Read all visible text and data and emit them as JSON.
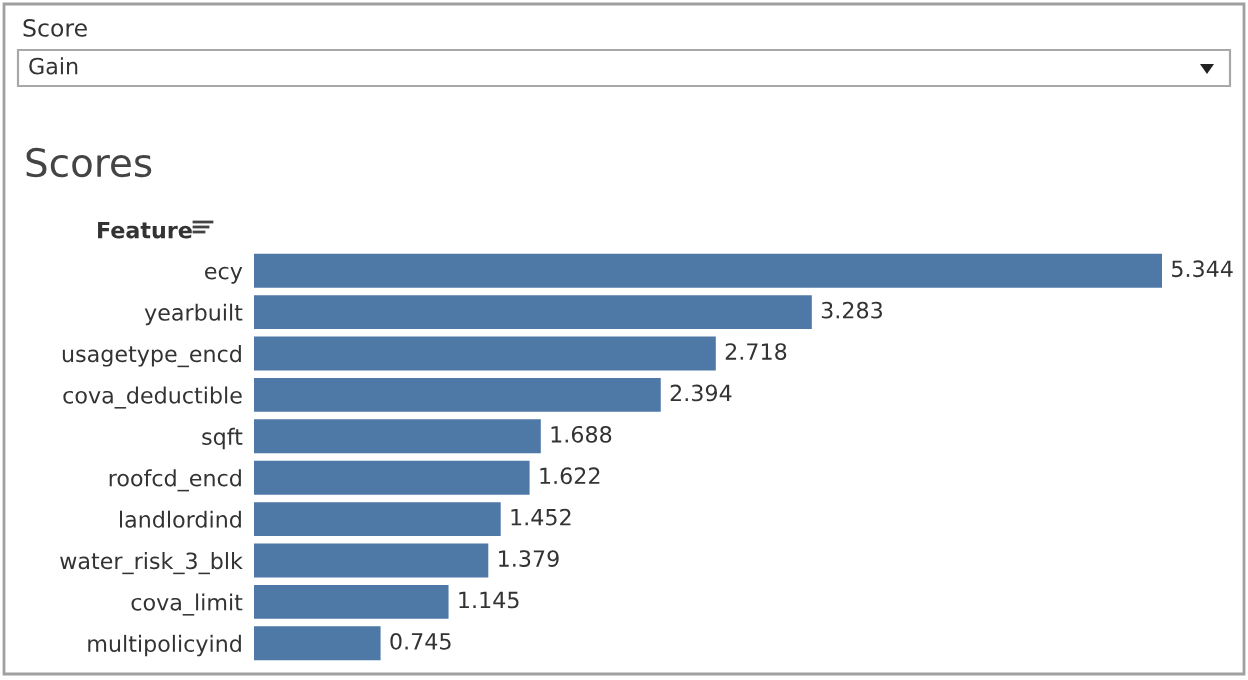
{
  "chart_data": {
    "type": "bar",
    "orientation": "horizontal",
    "title": "Scores",
    "ylabel": "Feature",
    "annotations": [
      "Score",
      "Gain"
    ],
    "categories": [
      "ecy",
      "yearbuilt",
      "usagetype_encd",
      "cova_deductible",
      "sqft",
      "roofcd_encd",
      "landlordind",
      "water_risk_3_blk",
      "cova_limit",
      "multipolicyind"
    ],
    "values": [
      5.344,
      3.283,
      2.718,
      2.394,
      1.688,
      1.622,
      1.452,
      1.379,
      1.145,
      0.745
    ],
    "color": "#4e79a7",
    "data_labels": true,
    "grid": false,
    "legend": false
  }
}
